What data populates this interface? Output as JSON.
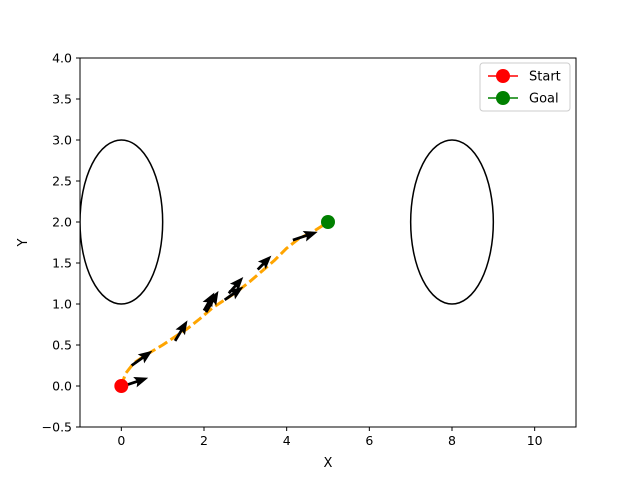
{
  "chart_data": {
    "type": "line",
    "title": "",
    "xlabel": "X",
    "ylabel": "Y",
    "xlim": [
      -1,
      11
    ],
    "ylim": [
      -0.5,
      4.0
    ],
    "xticks": [
      0,
      2,
      4,
      6,
      8,
      10
    ],
    "xtick_labels": [
      "0",
      "2",
      "4",
      "6",
      "8",
      "10"
    ],
    "yticks": [
      -0.5,
      0.0,
      0.5,
      1.0,
      1.5,
      2.0,
      2.5,
      3.0,
      3.5,
      4.0
    ],
    "ytick_labels": [
      "−0.5",
      "0.0",
      "0.5",
      "1.0",
      "1.5",
      "2.0",
      "2.5",
      "3.0",
      "3.5",
      "4.0"
    ],
    "grid": false,
    "legend_position": "top-right",
    "obstacles": [
      {
        "cx": 0,
        "cy": 2,
        "rx": 1,
        "ry": 1,
        "color": "#000000"
      },
      {
        "cx": 8,
        "cy": 2,
        "rx": 1,
        "ry": 1,
        "color": "#000000"
      }
    ],
    "path": {
      "color": "#ffa500",
      "style": "dashed",
      "points": [
        [
          0,
          0
        ],
        [
          0.1,
          0.15
        ],
        [
          0.3,
          0.28
        ],
        [
          0.6,
          0.38
        ],
        [
          1.0,
          0.5
        ],
        [
          1.3,
          0.6
        ],
        [
          1.6,
          0.7
        ],
        [
          1.9,
          0.82
        ],
        [
          2.2,
          0.95
        ],
        [
          2.5,
          1.05
        ],
        [
          2.8,
          1.15
        ],
        [
          3.1,
          1.27
        ],
        [
          3.4,
          1.4
        ],
        [
          3.7,
          1.53
        ],
        [
          4.0,
          1.68
        ],
        [
          4.3,
          1.8
        ],
        [
          4.6,
          1.87
        ],
        [
          4.85,
          1.95
        ],
        [
          5,
          2
        ]
      ]
    },
    "arrows": [
      {
        "x": 0.05,
        "y": 0.0,
        "dx": 0.6,
        "dy": 0.1
      },
      {
        "x": 0.25,
        "y": 0.25,
        "dx": 0.5,
        "dy": 0.18
      },
      {
        "x": 1.3,
        "y": 0.55,
        "dx": 0.3,
        "dy": 0.25
      },
      {
        "x": 2.0,
        "y": 0.92,
        "dx": 0.25,
        "dy": 0.22
      },
      {
        "x": 2.05,
        "y": 0.9,
        "dx": 0.3,
        "dy": 0.26
      },
      {
        "x": 2.5,
        "y": 1.05,
        "dx": 0.45,
        "dy": 0.16
      },
      {
        "x": 2.6,
        "y": 1.13,
        "dx": 0.35,
        "dy": 0.2
      },
      {
        "x": 3.3,
        "y": 1.42,
        "dx": 0.33,
        "dy": 0.17
      },
      {
        "x": 4.15,
        "y": 1.78,
        "dx": 0.6,
        "dy": 0.1
      }
    ],
    "series": [
      {
        "name": "Start",
        "x": [
          0
        ],
        "y": [
          0
        ],
        "color": "#ff0000"
      },
      {
        "name": "Goal",
        "x": [
          5
        ],
        "y": [
          2
        ],
        "color": "#008000"
      }
    ]
  }
}
